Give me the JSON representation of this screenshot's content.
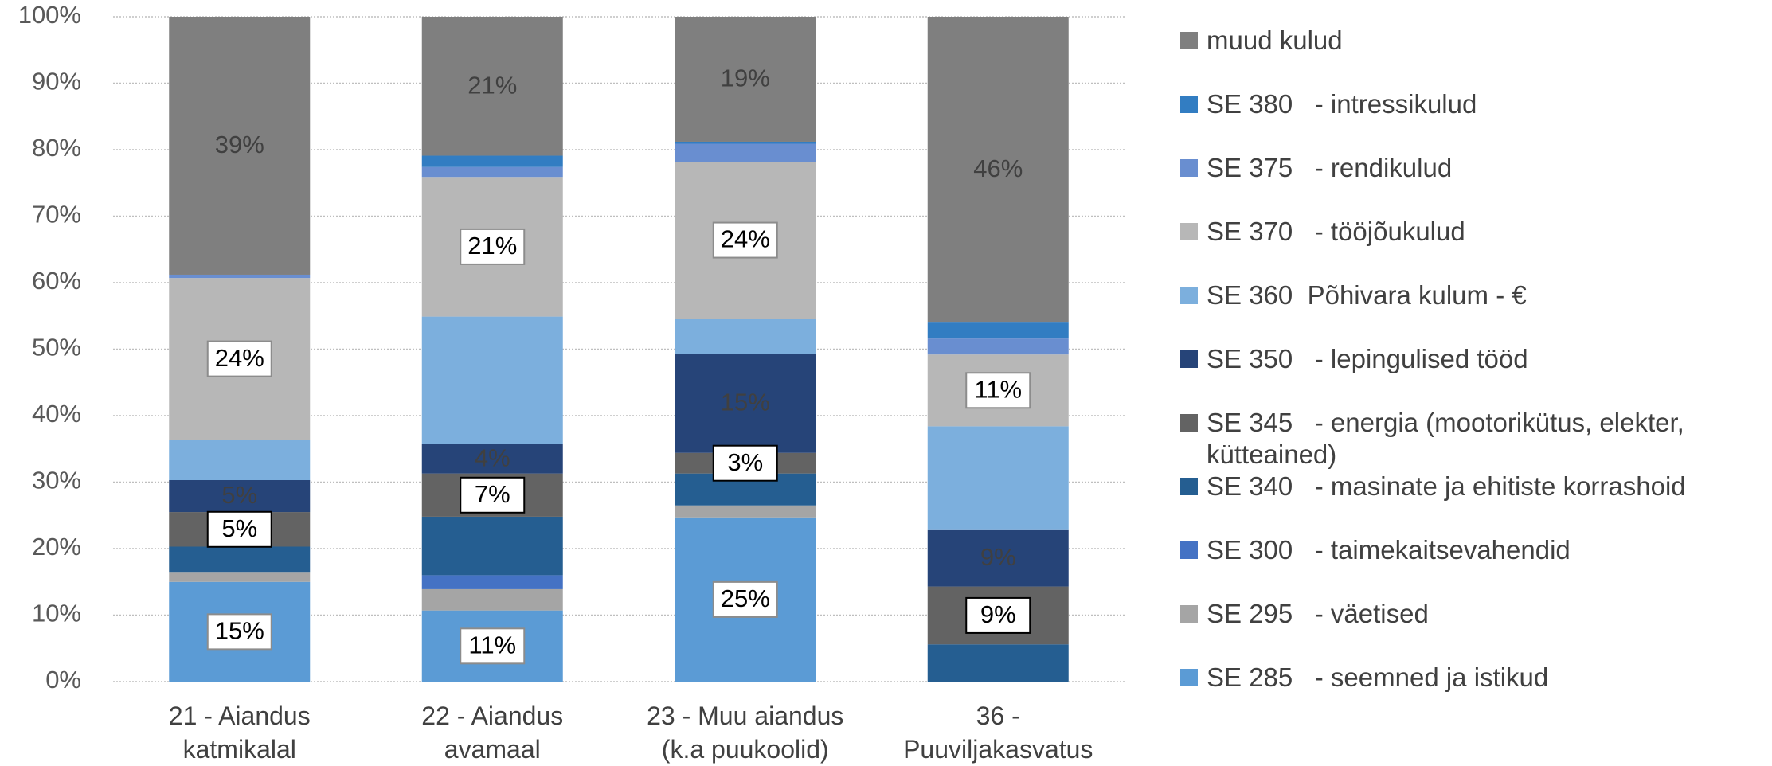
{
  "chart_data": {
    "type": "stacked_bar",
    "categories": [
      "21 - Aiandus katmikalal",
      "22 - Aiandus avamaal",
      "23 - Muu aiandus (k.a puukoolid)",
      "36 - Puuviljakasvatus"
    ],
    "series": [
      {
        "name": "SE 285   - seemned ja istikud",
        "color": "#5b9bd5",
        "values": [
          15,
          10.7,
          24.7,
          0
        ],
        "value_labels": [
          "15%",
          "11%",
          "25%",
          null
        ]
      },
      {
        "name": "SE 295   - väetised",
        "color": "#a5a5a5",
        "values": [
          1.5,
          3.2,
          1.8,
          0
        ]
      },
      {
        "name": "SE 300   - taimekaitsevahendid",
        "color": "#4472c4",
        "values": [
          0,
          2.1,
          0,
          0
        ]
      },
      {
        "name": "SE 340   - masinate ja ehitiste korrashoid",
        "color": "#255e91",
        "values": [
          3.8,
          8.8,
          4.8,
          5.6
        ]
      },
      {
        "name": "SE 345   - energia (mootorikütus, elekter, kütteained)",
        "color": "#636363",
        "values": [
          5.2,
          6.5,
          3.1,
          8.7
        ],
        "value_labels": [
          "5%",
          "7%",
          "3%",
          "9%"
        ]
      },
      {
        "name": "SE 350   - lepingulised tööd",
        "color": "#264478",
        "values": [
          4.8,
          4.4,
          14.9,
          8.6
        ],
        "value_labels": [
          "5%",
          "4%",
          "15%",
          "9%"
        ]
      },
      {
        "name": "SE 360  Põhivara kulum - €",
        "color": "#7cafdd",
        "values": [
          6.1,
          19.2,
          5.3,
          15.5
        ]
      },
      {
        "name": "SE 370   - tööjõukulud",
        "color": "#b7b7b7",
        "values": [
          24.3,
          21,
          23.6,
          10.8
        ],
        "value_labels": [
          "24%",
          "21%",
          "24%",
          "11%"
        ]
      },
      {
        "name": "SE 375   - rendikulud",
        "color": "#698ed0",
        "values": [
          0.5,
          1.5,
          2.7,
          2.4
        ]
      },
      {
        "name": "SE 380   - intressikulud",
        "color": "#327dc2",
        "values": [
          0,
          1.7,
          0.3,
          2.4
        ]
      },
      {
        "name": "muud kulud",
        "color": "#7f7f7f",
        "values": [
          38.8,
          20.9,
          18.8,
          46
        ],
        "value_labels": [
          "39%",
          "21%",
          "19%",
          "46%"
        ]
      }
    ],
    "ylim": [
      0,
      100
    ],
    "yticks": [
      {
        "value": 0,
        "label": "0%"
      },
      {
        "value": 10,
        "label": "10%"
      },
      {
        "value": 20,
        "label": "20%"
      },
      {
        "value": 30,
        "label": "30%"
      },
      {
        "value": 40,
        "label": "40%"
      },
      {
        "value": 50,
        "label": "50%"
      },
      {
        "value": 60,
        "label": "60%"
      },
      {
        "value": 70,
        "label": "70%"
      },
      {
        "value": 80,
        "label": "80%"
      },
      {
        "value": 90,
        "label": "90%"
      },
      {
        "value": 100,
        "label": "100%"
      }
    ],
    "grid": true,
    "legend": "right"
  }
}
